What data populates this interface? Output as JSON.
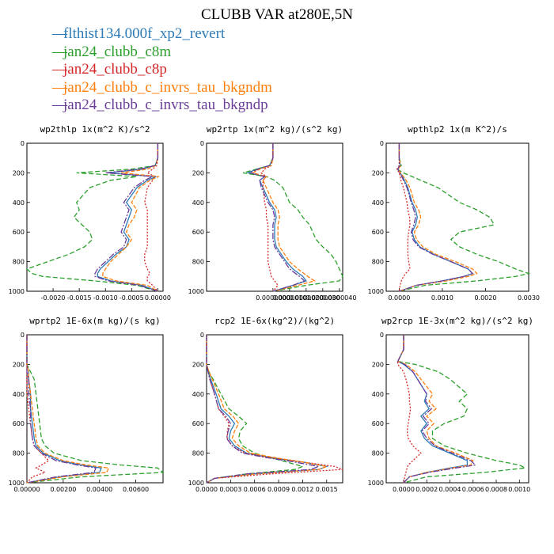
{
  "title": "CLUBB VAR at280E,5N",
  "legend": [
    {
      "label": "flthist134.000f_xp2_revert",
      "color": "#2c7bb6"
    },
    {
      "label": "jan24_clubb_c8m",
      "color": "#2ca02c"
    },
    {
      "label": "jan24_clubb_c8p",
      "color": "#d62728"
    },
    {
      "label": "jan24_clubb_c_invrs_tau_bkgndm",
      "color": "#ff7f0e"
    },
    {
      "label": "jan24_clubb_c_invrs_tau_bkgndp",
      "color": "#6a3d9a"
    }
  ],
  "chart_data": [
    {
      "type": "line",
      "title": "wp2thlp  1x(m^2 K)/s^2",
      "xlim": [
        -0.0025,
        0.0001
      ],
      "ylim": [
        0,
        1000
      ],
      "xticks": [
        -0.002,
        -0.0015,
        -0.001,
        -0.0005,
        0.0
      ],
      "xtick_labels": [
        "-0.0020",
        "-0.0015",
        "-0.0010",
        "-0.0005",
        "0.00000"
      ],
      "yticks": [
        0,
        200,
        400,
        600,
        800,
        1000
      ],
      "y": [
        0,
        100,
        150,
        175,
        200,
        225,
        250,
        300,
        400,
        450,
        500,
        550,
        600,
        650,
        700,
        750,
        800,
        850,
        880,
        900,
        930,
        960,
        1000
      ],
      "series": [
        {
          "x": [
            0,
            0,
            -5e-05,
            -0.0003,
            -0.00095,
            -3e-05,
            -0.0002,
            -0.0004,
            -0.0006,
            -0.0005,
            -0.00055,
            -0.0006,
            -0.00065,
            -0.00055,
            -0.0006,
            -0.0008,
            -0.00095,
            -0.0011,
            -0.00115,
            -0.00115,
            -0.0009,
            -0.0003,
            0
          ]
        },
        {
          "x": [
            0,
            0,
            -5e-05,
            -0.0005,
            -0.00155,
            -0.0004,
            -0.0009,
            -0.0013,
            -0.00155,
            -0.0015,
            -0.0016,
            -0.00145,
            -0.0013,
            -0.00125,
            -0.0014,
            -0.0017,
            -0.0021,
            -0.0025,
            -0.0024,
            -0.0022,
            -0.0012,
            -0.0004,
            0
          ]
        },
        {
          "x": [
            0,
            0,
            -2e-05,
            -0.0001,
            -0.0002,
            -5e-05,
            -0.0001,
            -0.0002,
            -0.00025,
            -0.0002,
            -0.0002,
            -0.0002,
            -0.0002,
            -0.0002,
            -0.0002,
            -0.00025,
            -0.00025,
            -0.0002,
            -0.00015,
            -0.0002,
            -0.0002,
            -0.0001,
            0
          ]
        },
        {
          "x": [
            0,
            0,
            -4e-05,
            -0.0002,
            -0.0007,
            2e-05,
            -0.00015,
            -0.00035,
            -0.0005,
            -0.0004,
            -0.00045,
            -0.00055,
            -0.0006,
            -0.0005,
            -0.0006,
            -0.00075,
            -0.0009,
            -0.001,
            -0.00105,
            -0.00105,
            -0.0008,
            -0.0002,
            0
          ]
        },
        {
          "x": [
            0,
            0,
            -5e-05,
            -0.00035,
            -0.001,
            -0.0001,
            -0.00025,
            -0.00045,
            -0.00065,
            -0.00055,
            -0.0006,
            -0.00065,
            -0.0007,
            -0.0006,
            -0.00065,
            -0.00085,
            -0.001,
            -0.00115,
            -0.0012,
            -0.0012,
            -0.00095,
            -0.00035,
            0
          ]
        }
      ]
    },
    {
      "type": "line",
      "title": "wp2rtp  1x(m^2 kg)/(s^2 kg)",
      "xlim": [
        -4e-06,
        4.2e-06
      ],
      "ylim": [
        0,
        1000
      ],
      "xticks": [
        0.0,
        1e-06,
        2e-06,
        3e-06,
        4e-06
      ],
      "xtick_labels": [
        "0.0000000",
        "0.0000010",
        "0.0000020",
        "0.0000030",
        "0.0000040"
      ],
      "yticks": [
        0,
        200,
        400,
        600,
        800,
        1000
      ],
      "y": [
        0,
        100,
        150,
        175,
        200,
        225,
        250,
        300,
        400,
        450,
        500,
        550,
        600,
        650,
        700,
        750,
        800,
        850,
        900,
        930,
        960,
        1000
      ],
      "series": [
        {
          "x": [
            0,
            0,
            -2e-07,
            -1e-06,
            -1.5e-06,
            -5e-07,
            -8e-07,
            -6e-07,
            -2e-07,
            1e-07,
            2e-07,
            1e-07,
            1e-07,
            1e-07,
            2e-07,
            5e-07,
            8e-07,
            1.2e-06,
            1.8e-06,
            2e-06,
            1.2e-06,
            0
          ]
        },
        {
          "x": [
            0,
            0,
            -2e-07,
            -1e-06,
            -1.8e-06,
            -4e-07,
            1e-07,
            6e-07,
            1e-06,
            1.5e-06,
            1.8e-06,
            2.2e-06,
            2.4e-06,
            2.6e-06,
            3e-06,
            3.5e-06,
            3.8e-06,
            4e-06,
            4.2e-06,
            4e-06,
            2e-06,
            0
          ]
        },
        {
          "x": [
            0,
            0,
            -1e-07,
            -5e-07,
            -7e-07,
            -4e-07,
            -6e-07,
            -6e-07,
            -5e-07,
            -4e-07,
            -4e-07,
            -3e-07,
            -3e-07,
            -3e-07,
            -3e-07,
            -3e-07,
            -3e-07,
            -2e-07,
            -1e-07,
            1e-07,
            3e-07,
            0
          ]
        },
        {
          "x": [
            0,
            0,
            -1e-07,
            -8e-07,
            -1.2e-06,
            -4e-07,
            -6e-07,
            -4e-07,
            0,
            3e-07,
            4e-07,
            3e-07,
            3e-07,
            3e-07,
            4e-07,
            7e-07,
            1e-06,
            1.5e-06,
            2.1e-06,
            2.5e-06,
            1.5e-06,
            0
          ]
        },
        {
          "x": [
            0,
            0,
            -2e-07,
            -9e-07,
            -1.4e-06,
            -5e-07,
            -8e-07,
            -7e-07,
            -3e-07,
            0,
            1e-07,
            0,
            0,
            0,
            1e-07,
            4e-07,
            7e-07,
            1e-06,
            1.6e-06,
            1.9e-06,
            1.2e-06,
            0
          ]
        }
      ]
    },
    {
      "type": "line",
      "title": "wpthlp2  1x(m K^2)/s",
      "xlim": [
        -0.0003,
        0.003
      ],
      "ylim": [
        0,
        1000
      ],
      "xticks": [
        0.0,
        0.001,
        0.002,
        0.003
      ],
      "xtick_labels": [
        "0.0000",
        "0.0010",
        "0.0020",
        "0.0030"
      ],
      "yticks": [
        0,
        200,
        400,
        600,
        800,
        1000
      ],
      "y": [
        0,
        100,
        150,
        175,
        200,
        225,
        250,
        300,
        400,
        450,
        500,
        550,
        600,
        650,
        700,
        750,
        800,
        850,
        880,
        900,
        930,
        960,
        1000
      ],
      "series": [
        {
          "x": [
            0,
            0,
            2e-05,
            -3e-05,
            2e-05,
            8e-05,
            0.00012,
            0.0002,
            0.0003,
            0.00038,
            0.00042,
            0.00038,
            0.0003,
            0.00035,
            0.00048,
            0.0008,
            0.0012,
            0.0016,
            0.0017,
            0.0015,
            0.001,
            0.0004,
            0
          ]
        },
        {
          "x": [
            0,
            0,
            5e-05,
            -5e-05,
            0.0001,
            0.0003,
            0.0005,
            0.0009,
            0.0014,
            0.0018,
            0.0021,
            0.0022,
            0.0014,
            0.0012,
            0.0014,
            0.0018,
            0.0023,
            0.0027,
            0.003,
            0.0027,
            0.0018,
            0.0006,
            0
          ]
        },
        {
          "x": [
            0,
            0,
            0,
            -5e-05,
            0,
            2e-05,
            4e-05,
            0.0001,
            0.00018,
            0.0002,
            0.00024,
            0.00025,
            0.00022,
            0.0002,
            0.0002,
            0.0002,
            0.00022,
            0.00025,
            0.00015,
            0.0001,
            5e-05,
            2e-05,
            0
          ]
        },
        {
          "x": [
            0,
            0,
            3e-05,
            -2e-05,
            3e-05,
            0.0001,
            0.00016,
            0.00025,
            0.00035,
            0.00045,
            0.0005,
            0.00045,
            0.00035,
            0.0004,
            0.00055,
            0.00085,
            0.0013,
            0.0017,
            0.0018,
            0.0016,
            0.0011,
            0.0004,
            0
          ]
        },
        {
          "x": [
            0,
            0,
            1e-05,
            -3e-05,
            1e-05,
            6e-05,
            0.0001,
            0.00018,
            0.00028,
            0.00034,
            0.00038,
            0.00034,
            0.00028,
            0.00032,
            0.00045,
            0.00078,
            0.0012,
            0.0016,
            0.0017,
            0.0015,
            0.001,
            0.0004,
            0
          ]
        }
      ]
    },
    {
      "type": "line",
      "title": "wprtp2  1E-6x(m kg)/(s kg)",
      "xlim": [
        0,
        0.0075
      ],
      "ylim": [
        0,
        1000
      ],
      "xticks": [
        0.0,
        0.002,
        0.004,
        0.006
      ],
      "xtick_labels": [
        "0.00000",
        "0.00200",
        "0.00400",
        "0.00600"
      ],
      "yticks": [
        0,
        200,
        400,
        600,
        800,
        1000
      ],
      "y": [
        0,
        100,
        200,
        250,
        300,
        400,
        500,
        600,
        700,
        750,
        800,
        850,
        880,
        900,
        930,
        960,
        1000
      ],
      "series": [
        {
          "x": [
            0,
            0,
            0,
            0.0001,
            0.0001,
            0.0002,
            0.0002,
            0.0003,
            0.0004,
            0.0005,
            0.0009,
            0.0018,
            0.003,
            0.0041,
            0.004,
            0.0018,
            0
          ]
        },
        {
          "x": [
            0,
            0,
            0,
            0.0002,
            0.0004,
            0.0005,
            0.0006,
            0.0007,
            0.0008,
            0.001,
            0.0015,
            0.003,
            0.0052,
            0.0072,
            0.0075,
            0.003,
            0
          ]
        },
        {
          "x": [
            0,
            0,
            0,
            0,
            0,
            0,
            0.0001,
            0.0002,
            0.0003,
            0.0004,
            0.0008,
            0.0012,
            0.0008,
            0.0005,
            0.001,
            0.0003,
            0
          ]
        },
        {
          "x": [
            0,
            0,
            0,
            0.0001,
            0.0001,
            0.0002,
            0.0003,
            0.0004,
            0.0005,
            0.0006,
            0.001,
            0.002,
            0.0033,
            0.0045,
            0.0044,
            0.002,
            0
          ]
        },
        {
          "x": [
            0,
            0,
            0,
            0,
            0.0001,
            0.0001,
            0.0002,
            0.0002,
            0.0003,
            0.0004,
            0.0008,
            0.0016,
            0.0028,
            0.0038,
            0.0037,
            0.0016,
            0
          ]
        }
      ]
    },
    {
      "type": "line",
      "title": "rcp2  1E-6x(kg^2)/(kg^2)",
      "xlim": [
        0,
        0.0017
      ],
      "ylim": [
        0,
        1000
      ],
      "xticks": [
        0.0,
        0.0003,
        0.0006,
        0.0009,
        0.0012,
        0.0015
      ],
      "xtick_labels": [
        "0.0000",
        "0.0003",
        "0.0006",
        "0.0009",
        "0.0012",
        "0.0015"
      ],
      "yticks": [
        0,
        200,
        400,
        600,
        800,
        1000
      ],
      "y": [
        0,
        100,
        200,
        250,
        300,
        400,
        500,
        550,
        600,
        650,
        700,
        750,
        800,
        830,
        860,
        890,
        910,
        940,
        970,
        1000
      ],
      "series": [
        {
          "x": [
            0,
            0,
            0,
            2e-05,
            5e-05,
            0.00012,
            0.00018,
            0.00028,
            0.00035,
            0.0003,
            0.00028,
            0.00035,
            0.0005,
            0.0008,
            0.0012,
            0.0015,
            0.0014,
            0.0006,
            0.0001,
            0
          ]
        },
        {
          "x": [
            0,
            0,
            0,
            3e-05,
            8e-05,
            0.00018,
            0.00028,
            0.0004,
            0.0005,
            0.00042,
            0.0004,
            0.00045,
            0.0006,
            0.0008,
            0.001,
            0.0012,
            0.0011,
            0.0005,
            0.0001,
            0
          ]
        },
        {
          "x": [
            0,
            0,
            0,
            2e-05,
            4e-05,
            0.0001,
            0.00015,
            0.00022,
            0.00028,
            0.00026,
            0.00026,
            0.00032,
            0.00048,
            0.0008,
            0.0012,
            0.0016,
            0.0017,
            0.0008,
            0.0001,
            0
          ]
        },
        {
          "x": [
            0,
            0,
            0,
            3e-05,
            7e-05,
            0.00015,
            0.00022,
            0.00033,
            0.0004,
            0.00035,
            0.00032,
            0.0004,
            0.00055,
            0.00085,
            0.0012,
            0.0015,
            0.0014,
            0.0006,
            0.0001,
            0
          ]
        },
        {
          "x": [
            0,
            0,
            0,
            2e-05,
            4e-05,
            0.0001,
            0.00015,
            0.00024,
            0.0003,
            0.00027,
            0.00025,
            0.00032,
            0.00045,
            0.00075,
            0.0011,
            0.0014,
            0.0013,
            0.0005,
            0.0001,
            0
          ]
        }
      ]
    },
    {
      "type": "line",
      "title": "wp2rcp  1E-3x(m^2 kg)/(s^2 kg)",
      "xlim": [
        -0.00015,
        0.00108
      ],
      "ylim": [
        0,
        1000
      ],
      "xticks": [
        0.0,
        0.0002,
        0.0004,
        0.0006,
        0.0008,
        0.001
      ],
      "xtick_labels": [
        "0.0000",
        "0.0002",
        "0.0004",
        "0.0006",
        "0.0008",
        "0.0010"
      ],
      "yticks": [
        0,
        200,
        400,
        600,
        800,
        1000
      ],
      "y": [
        0,
        100,
        180,
        200,
        250,
        300,
        400,
        450,
        500,
        550,
        600,
        650,
        700,
        750,
        800,
        850,
        880,
        900,
        930,
        960,
        1000
      ],
      "series": [
        {
          "x": [
            0,
            0,
            -5e-05,
            0,
            8e-05,
            0.00012,
            0.0002,
            0.00018,
            0.00022,
            0.00015,
            0.0002,
            0.00015,
            0.00018,
            0.00025,
            0.0004,
            0.00055,
            0.00055,
            0.0004,
            0.0002,
            5e-05,
            0
          ]
        },
        {
          "x": [
            0,
            0,
            -5e-05,
            0.0001,
            0.0003,
            0.0004,
            0.00055,
            0.00048,
            0.00055,
            0.00052,
            0.00035,
            0.00025,
            0.00025,
            0.00035,
            0.00055,
            0.0008,
            0.001,
            0.00105,
            0.0007,
            0.0002,
            0
          ]
        },
        {
          "x": [
            0,
            0,
            -5e-05,
            -5e-05,
            0,
            2e-05,
            5e-05,
            5e-05,
            6e-05,
            5e-05,
            4e-05,
            3e-05,
            4e-05,
            8e-05,
            0.00015,
            8e-05,
            4e-05,
            3e-05,
            2e-05,
            1e-05,
            0
          ]
        },
        {
          "x": [
            0,
            0,
            -5e-05,
            2e-05,
            0.0001,
            0.00015,
            0.00025,
            0.00022,
            0.00028,
            0.0002,
            0.00026,
            0.0002,
            0.00022,
            0.00028,
            0.00045,
            0.0006,
            0.00058,
            0.00042,
            0.0002,
            5e-05,
            0
          ]
        },
        {
          "x": [
            0,
            0,
            -5e-05,
            1e-05,
            8e-05,
            0.00012,
            0.0002,
            0.00019,
            0.00024,
            0.00017,
            0.00022,
            0.00016,
            0.0002,
            0.00027,
            0.00042,
            0.00058,
            0.00062,
            0.00045,
            0.00022,
            5e-05,
            0
          ]
        }
      ]
    }
  ]
}
